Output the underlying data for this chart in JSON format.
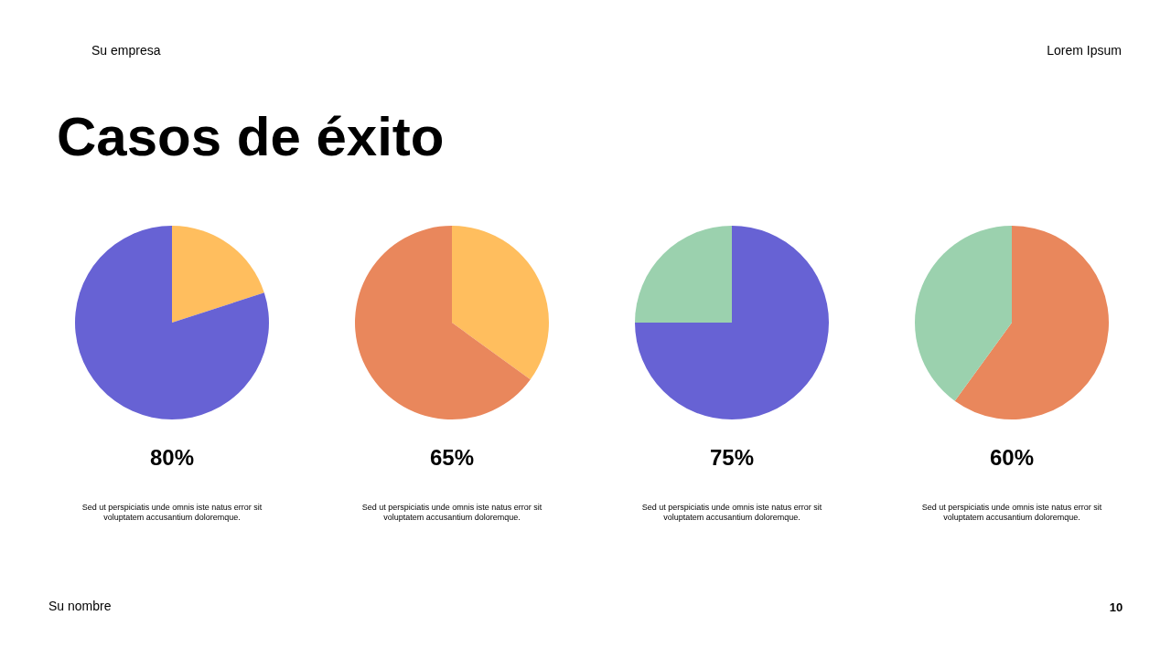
{
  "chart_data": [
    {
      "type": "other",
      "title": "Casos de éxito",
      "annotations": [
        "Su empresa",
        "Lorem Ipsum",
        "Su nombre",
        "10"
      ]
    },
    {
      "type": "pie",
      "categories": [
        null,
        null
      ],
      "values": [
        20,
        80
      ],
      "colors": [
        "#ffbe5e",
        "#6762d4"
      ],
      "value_labels": [
        null,
        "80%"
      ],
      "annotations": [
        "Sed ut perspiciatis unde omnis iste natus error sit voluptatem accusantium doloremque."
      ]
    },
    {
      "type": "pie",
      "categories": [
        null,
        null
      ],
      "values": [
        35,
        65
      ],
      "colors": [
        "#ffbe5e",
        "#e9875c"
      ],
      "value_labels": [
        null,
        "65%"
      ],
      "annotations": [
        "Sed ut perspiciatis unde omnis iste natus error sit voluptatem accusantium doloremque."
      ]
    },
    {
      "type": "pie",
      "categories": [
        null,
        null
      ],
      "values": [
        75,
        25
      ],
      "colors": [
        "#6762d4",
        "#9bd1ae"
      ],
      "value_labels": [
        "75%",
        null
      ],
      "annotations": [
        "Sed ut perspiciatis unde omnis iste natus error sit voluptatem accusantium doloremque."
      ]
    },
    {
      "type": "pie",
      "categories": [
        null,
        null
      ],
      "values": [
        60,
        40
      ],
      "colors": [
        "#e9875c",
        "#9bd1ae"
      ],
      "value_labels": [
        "60%",
        null
      ],
      "annotations": [
        "Sed ut perspiciatis unde omnis iste natus error sit voluptatem accusantium doloremque."
      ]
    }
  ]
}
